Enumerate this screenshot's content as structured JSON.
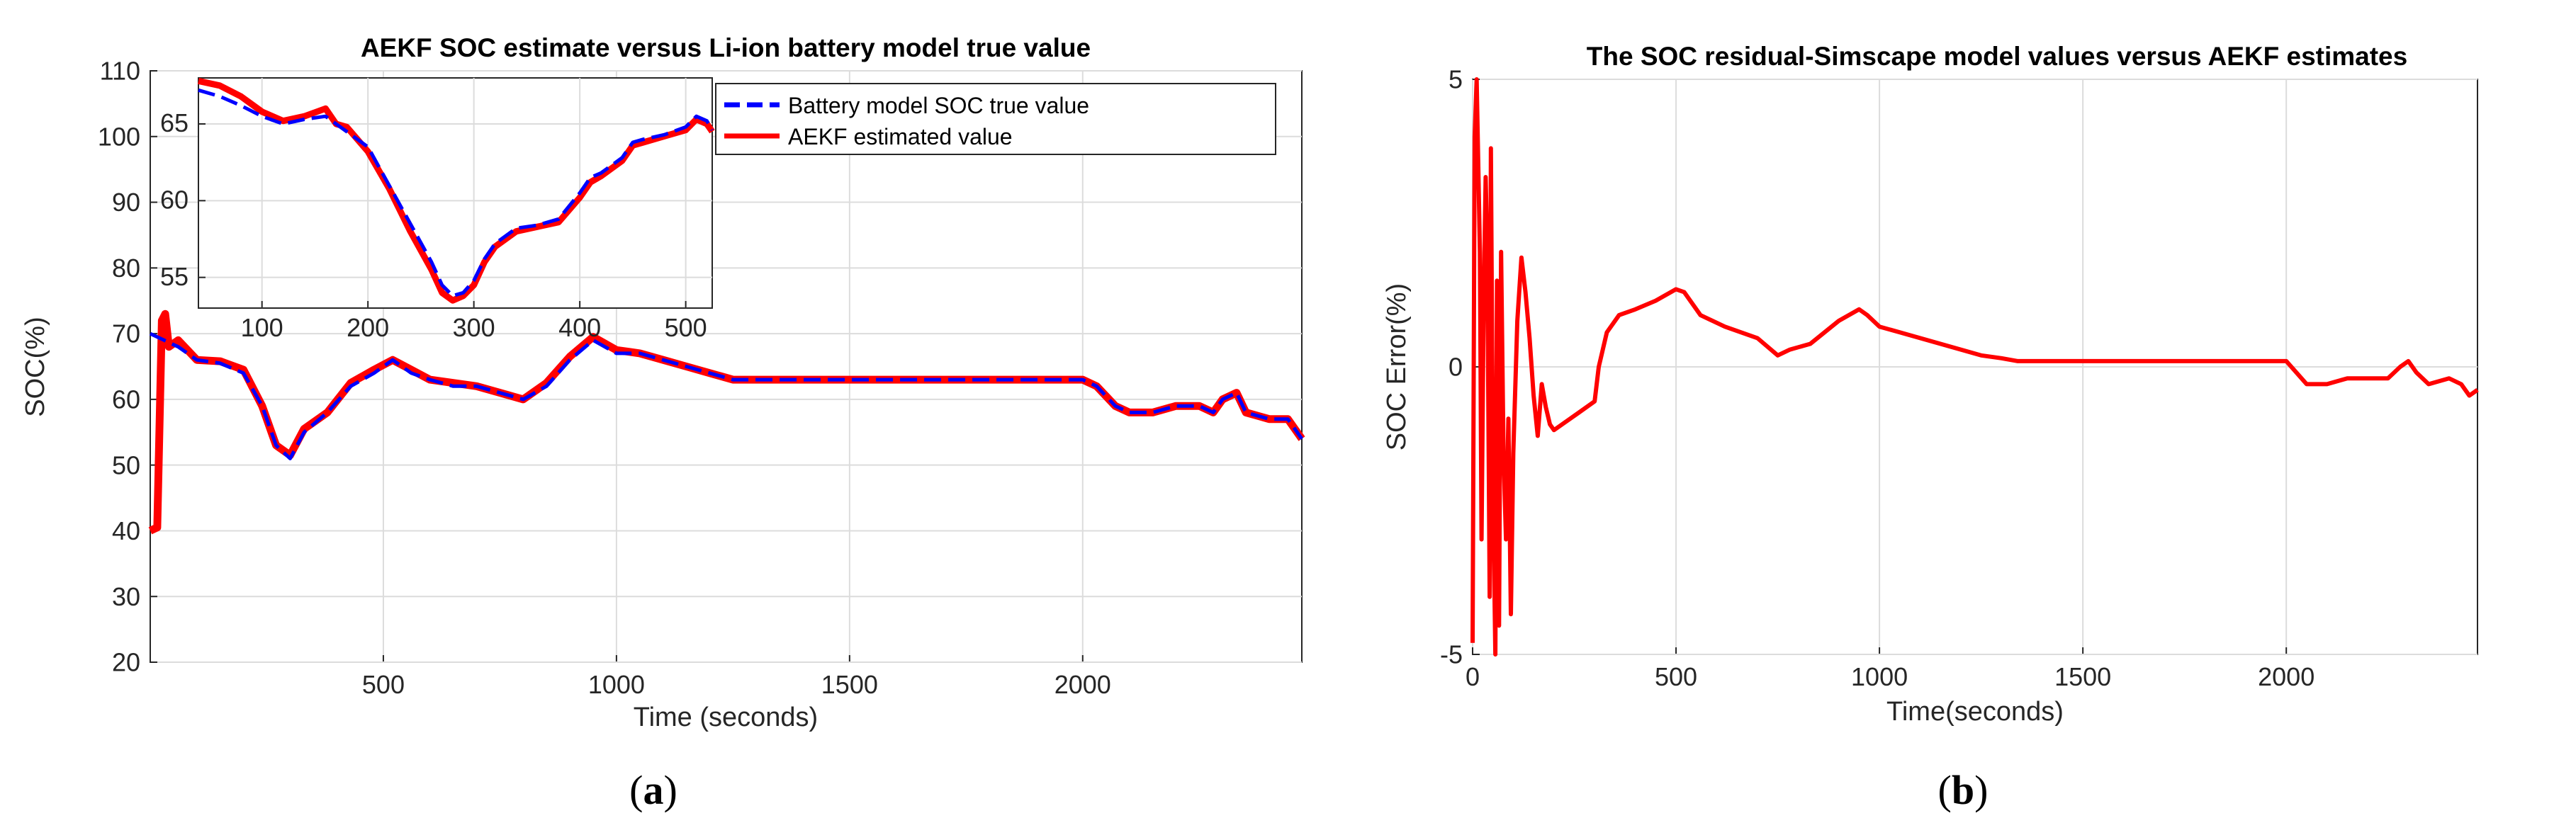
{
  "chart_data": [
    {
      "id": "a",
      "type": "line",
      "title": "AEKF SOC estimate versus Li-ion battery model true value",
      "xlabel": "Time (seconds)",
      "ylabel": "SOC(%)",
      "xlim": [
        0,
        2470
      ],
      "ylim": [
        20,
        110
      ],
      "xticks": [
        500,
        1000,
        1500,
        2000
      ],
      "yticks": [
        20,
        30,
        40,
        50,
        60,
        70,
        80,
        90,
        100,
        110
      ],
      "grid": true,
      "legend_position": "top-right",
      "caption": "a",
      "series": [
        {
          "name": "Battery model SOC true value",
          "color": "#0000ff",
          "style": "dashed",
          "x": [
            0,
            30,
            60,
            100,
            150,
            200,
            240,
            270,
            300,
            330,
            380,
            430,
            480,
            520,
            560,
            600,
            650,
            700,
            750,
            800,
            850,
            900,
            950,
            1000,
            1050,
            1100,
            1150,
            1200,
            1250,
            1300,
            1350,
            1400,
            1500,
            1600,
            1700,
            1800,
            1900,
            2000,
            2030,
            2070,
            2100,
            2150,
            2200,
            2250,
            2280,
            2300,
            2330,
            2350,
            2400,
            2440,
            2470
          ],
          "values": [
            70,
            69,
            68,
            66,
            65.5,
            64,
            59,
            53,
            51,
            55,
            58,
            62,
            64,
            66,
            64,
            63,
            62,
            62,
            61,
            60,
            62,
            66,
            69,
            67,
            67,
            66,
            65,
            64,
            63,
            63,
            63,
            63,
            63,
            63,
            63,
            63,
            63,
            63,
            62,
            59,
            58,
            58,
            59,
            59,
            58,
            60,
            61,
            58,
            57,
            57,
            54
          ]
        },
        {
          "name": "AEKF estimated value",
          "color": "#ff0000",
          "style": "solid",
          "x": [
            0,
            15,
            25,
            32,
            40,
            60,
            100,
            150,
            200,
            240,
            270,
            300,
            330,
            380,
            430,
            480,
            520,
            560,
            600,
            650,
            700,
            750,
            800,
            850,
            900,
            950,
            1000,
            1050,
            1100,
            1150,
            1200,
            1250,
            1300,
            1350,
            1400,
            1500,
            1600,
            1700,
            1800,
            1900,
            2000,
            2030,
            2070,
            2100,
            2150,
            2200,
            2250,
            2280,
            2300,
            2330,
            2350,
            2400,
            2440,
            2470
          ],
          "values": [
            40,
            40.5,
            72,
            73,
            68,
            69,
            66,
            65.8,
            64.5,
            59,
            53,
            51.5,
            55.5,
            58,
            62.5,
            64.5,
            66,
            64.5,
            63,
            62.5,
            62,
            61,
            60,
            62.5,
            66.5,
            69.5,
            67.5,
            67,
            66,
            65,
            64,
            63,
            63,
            63,
            63,
            63,
            63,
            63,
            63,
            63,
            63,
            62,
            59,
            58,
            58,
            59,
            59,
            58,
            60,
            61,
            58,
            57,
            57,
            54
          ]
        }
      ],
      "inset": {
        "xlim": [
          40,
          525
        ],
        "ylim": [
          53,
          68
        ],
        "xticks": [
          100,
          200,
          300,
          400,
          500
        ],
        "yticks": [
          55,
          60,
          65
        ],
        "series": [
          {
            "name": "Battery model SOC true value",
            "x": [
              40,
              60,
              80,
              100,
              120,
              140,
              160,
              170,
              180,
              200,
              220,
              240,
              260,
              270,
              280,
              290,
              300,
              310,
              320,
              340,
              360,
              380,
              400,
              410,
              420,
              440,
              450,
              460,
              480,
              500,
              510,
              520,
              525
            ],
            "values": [
              67.2,
              66.8,
              66.2,
              65.5,
              65.0,
              65.3,
              65.5,
              65.0,
              64.5,
              63.5,
              61.0,
              58.5,
              56.0,
              54.5,
              53.8,
              54.0,
              54.8,
              56.2,
              57.2,
              58.2,
              58.4,
              58.8,
              60.5,
              61.5,
              61.8,
              62.8,
              63.8,
              64.0,
              64.3,
              64.8,
              65.5,
              65.2,
              64.6
            ]
          },
          {
            "name": "AEKF estimated value",
            "x": [
              40,
              60,
              80,
              100,
              120,
              140,
              160,
              170,
              180,
              200,
              220,
              240,
              260,
              270,
              280,
              290,
              300,
              310,
              320,
              340,
              360,
              380,
              400,
              410,
              420,
              440,
              450,
              460,
              480,
              500,
              510,
              520,
              525
            ],
            "values": [
              67.8,
              67.5,
              66.8,
              65.8,
              65.2,
              65.5,
              66.0,
              65.0,
              64.8,
              63.2,
              60.8,
              58.0,
              55.5,
              54.0,
              53.5,
              53.8,
              54.5,
              56.0,
              57.0,
              58.0,
              58.3,
              58.6,
              60.2,
              61.2,
              61.6,
              62.6,
              63.6,
              63.8,
              64.2,
              64.6,
              65.3,
              65.0,
              64.5
            ]
          }
        ]
      }
    },
    {
      "id": "b",
      "type": "line",
      "title": "The SOC residual-Simscape model values versus AEKF estimates",
      "xlabel": "Time(seconds)",
      "ylabel": "SOC Error(%)",
      "xlim": [
        0,
        2470
      ],
      "ylim": [
        -5,
        5
      ],
      "xticks": [
        0,
        500,
        1000,
        1500,
        2000
      ],
      "yticks": [
        -5,
        0,
        5
      ],
      "grid": true,
      "caption": "b",
      "series": [
        {
          "name": "SOC residual",
          "color": "#ff0000",
          "style": "solid",
          "x": [
            0,
            5,
            10,
            18,
            22,
            27,
            32,
            36,
            42,
            45,
            50,
            56,
            60,
            65,
            70,
            76,
            82,
            88,
            94,
            100,
            110,
            120,
            130,
            140,
            150,
            160,
            170,
            180,
            190,
            200,
            220,
            260,
            300,
            310,
            330,
            360,
            400,
            450,
            500,
            520,
            560,
            620,
            700,
            750,
            780,
            830,
            900,
            950,
            970,
            1000,
            1050,
            1100,
            1150,
            1200,
            1250,
            1300,
            1340,
            1400,
            1500,
            1600,
            1700,
            1800,
            1900,
            1980,
            2000,
            2050,
            2100,
            2150,
            2250,
            2280,
            2300,
            2320,
            2350,
            2400,
            2430,
            2450,
            2470
          ],
          "values": [
            -4.8,
            4.0,
            5.0,
            2.0,
            -3.0,
            1.0,
            3.3,
            2.0,
            -4.0,
            3.8,
            -2.0,
            -5.0,
            1.5,
            -4.5,
            2.0,
            -1.5,
            -3.0,
            -0.9,
            -4.3,
            -1.5,
            0.8,
            1.9,
            1.3,
            0.5,
            -0.5,
            -1.2,
            -0.3,
            -0.7,
            -1.0,
            -1.1,
            -1.0,
            -0.8,
            -0.6,
            0.0,
            0.6,
            0.9,
            1.0,
            1.15,
            1.35,
            1.3,
            0.9,
            0.7,
            0.5,
            0.2,
            0.3,
            0.4,
            0.8,
            1.0,
            0.9,
            0.7,
            0.6,
            0.5,
            0.4,
            0.3,
            0.2,
            0.15,
            0.1,
            0.1,
            0.1,
            0.1,
            0.1,
            0.1,
            0.1,
            0.1,
            0.1,
            -0.3,
            -0.3,
            -0.2,
            -0.2,
            0.0,
            0.1,
            -0.1,
            -0.3,
            -0.2,
            -0.3,
            -0.5,
            -0.4
          ]
        }
      ]
    }
  ]
}
